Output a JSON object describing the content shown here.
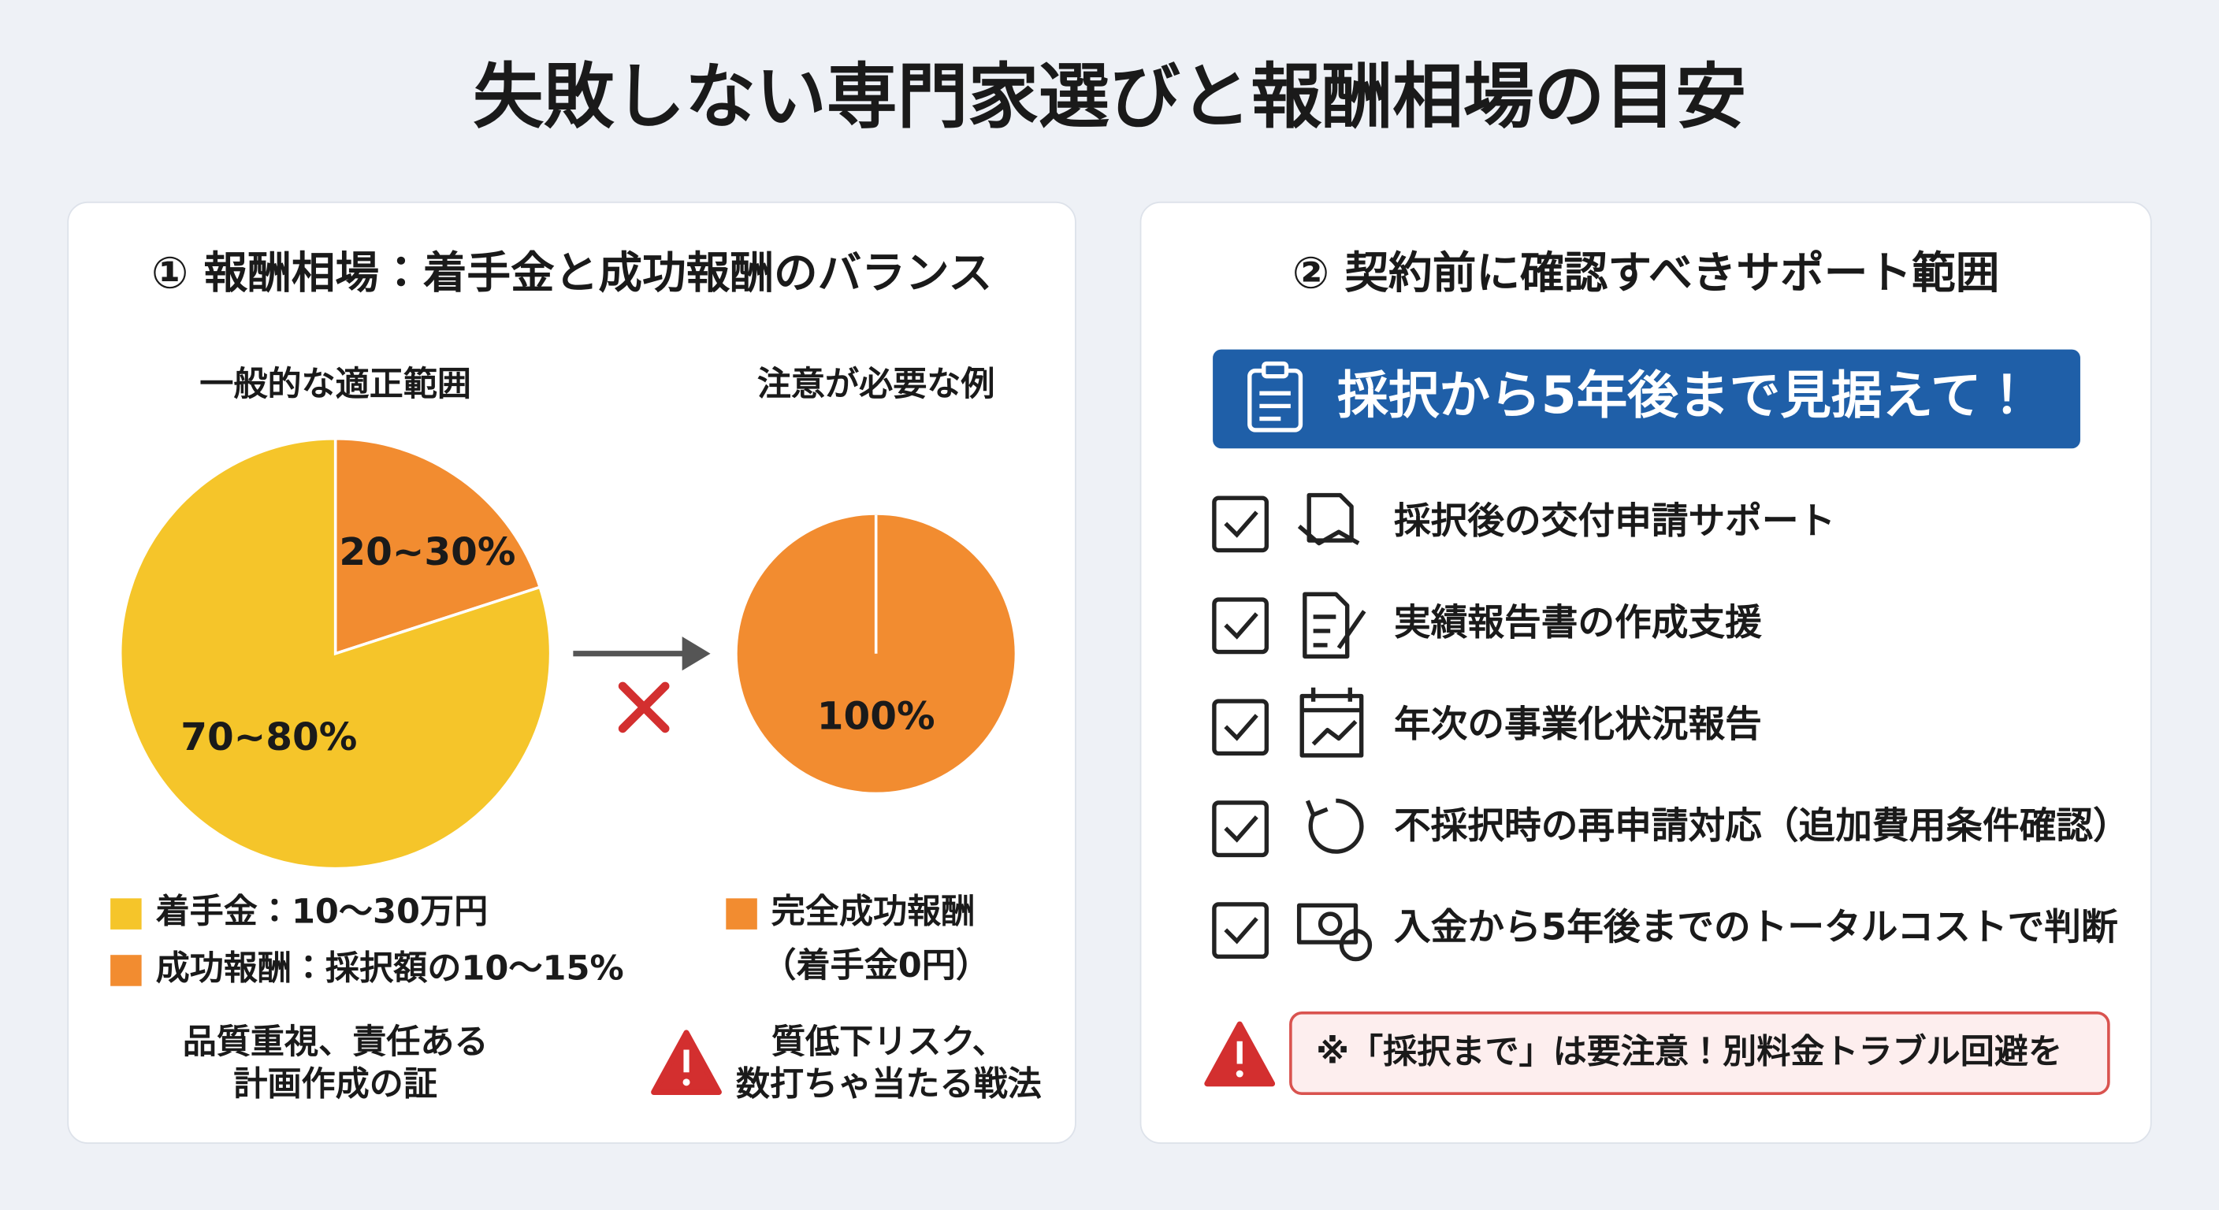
{
  "title": "失敗しない専門家選びと報酬相場の目安",
  "left_panel": {
    "heading": "① 報酬相場：着手金と成功報酬のバランス",
    "general": {
      "caption": "一般的な適正範囲",
      "slices": [
        {
          "label": "20~30%",
          "value": 20,
          "color": "#f28c30"
        },
        {
          "label": "70~80%",
          "value": 80,
          "color": "#f5c52a"
        }
      ],
      "legend": [
        {
          "label": "着手金：10〜30万円",
          "color": "#f5c52a"
        },
        {
          "label": "成功報酬：採択額の10〜15%",
          "color": "#f28c30"
        }
      ],
      "note": [
        "品質重視、責任ある",
        "計画作成の証"
      ]
    },
    "caution": {
      "caption": "注意が必要な例",
      "slices": [
        {
          "label": "100%",
          "value": 100,
          "color": "#f28c30"
        }
      ],
      "legend": [
        {
          "label": "完全成功報酬",
          "color": "#f28c30"
        }
      ],
      "legend_note": "（着手金0円）",
      "note": [
        "質低下リスク、",
        "数打ちゃ当たる戦法"
      ]
    }
  },
  "right_panel": {
    "heading": "② 契約前に確認すべきサポート範囲",
    "banner": "採択から5年後まで見据えて！",
    "items": [
      "採択後の交付申請サポート",
      "実績報告書の作成支援",
      "年次の事業化状況報告",
      "不採択時の再申請対応（追加費用条件確認）",
      "入金から5年後までのトータルコストで判断"
    ],
    "warning": "※「採択まで」は要注意！別料金トラブル回避を"
  }
}
